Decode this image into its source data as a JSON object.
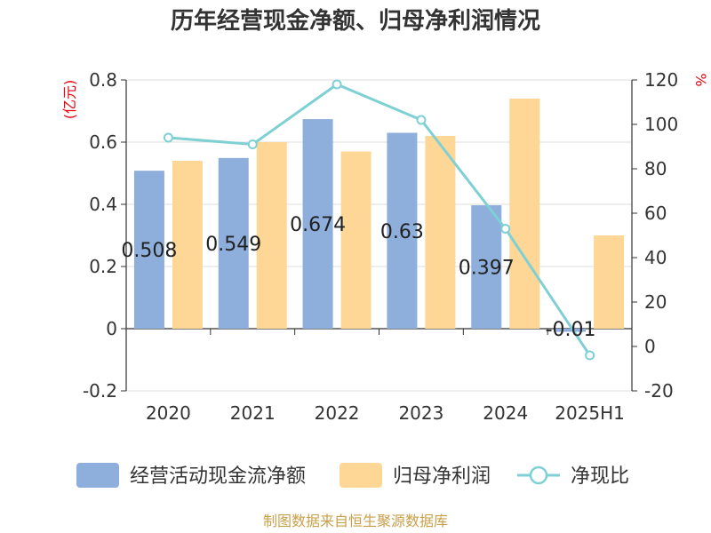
{
  "chart_data": {
    "type": "bar",
    "title": "历年经营现金净额、归母净利润情况",
    "categories": [
      "2020",
      "2021",
      "2022",
      "2023",
      "2024",
      "2025H1"
    ],
    "left_axis": {
      "unit": "(亿元)",
      "ylim": [
        -0.2,
        0.8
      ],
      "ticks": [
        "-0.2",
        "0",
        "0.2",
        "0.4",
        "0.6",
        "0.8"
      ],
      "tick_values": [
        -0.2,
        0,
        0.2,
        0.4,
        0.6,
        0.8
      ]
    },
    "right_axis": {
      "unit": "%",
      "ylim": [
        -20,
        120
      ],
      "ticks": [
        "-20",
        "0",
        "20",
        "40",
        "60",
        "80",
        "100",
        "120"
      ],
      "tick_values": [
        -20,
        0,
        20,
        40,
        60,
        80,
        100,
        120
      ]
    },
    "series": [
      {
        "name": "经营活动现金流净额",
        "type": "bar",
        "axis": "left",
        "color": "#8eaedb",
        "values": [
          0.508,
          0.549,
          0.674,
          0.63,
          0.397,
          -0.01
        ],
        "labels": [
          "0.508",
          "0.549",
          "0.674",
          "0.63",
          "0.397",
          "-0.01"
        ]
      },
      {
        "name": "归母净利润",
        "type": "bar",
        "axis": "left",
        "color": "#fed797",
        "values": [
          0.54,
          0.6,
          0.57,
          0.62,
          0.74,
          0.3
        ]
      },
      {
        "name": "净现比",
        "type": "line",
        "axis": "right",
        "color": "#7ed0d4",
        "values": [
          94,
          91,
          118,
          102,
          53,
          -4
        ]
      }
    ],
    "grid": true,
    "legend": "bottom"
  },
  "footer": {
    "source": "制图数据来自恒生聚源数据库"
  }
}
